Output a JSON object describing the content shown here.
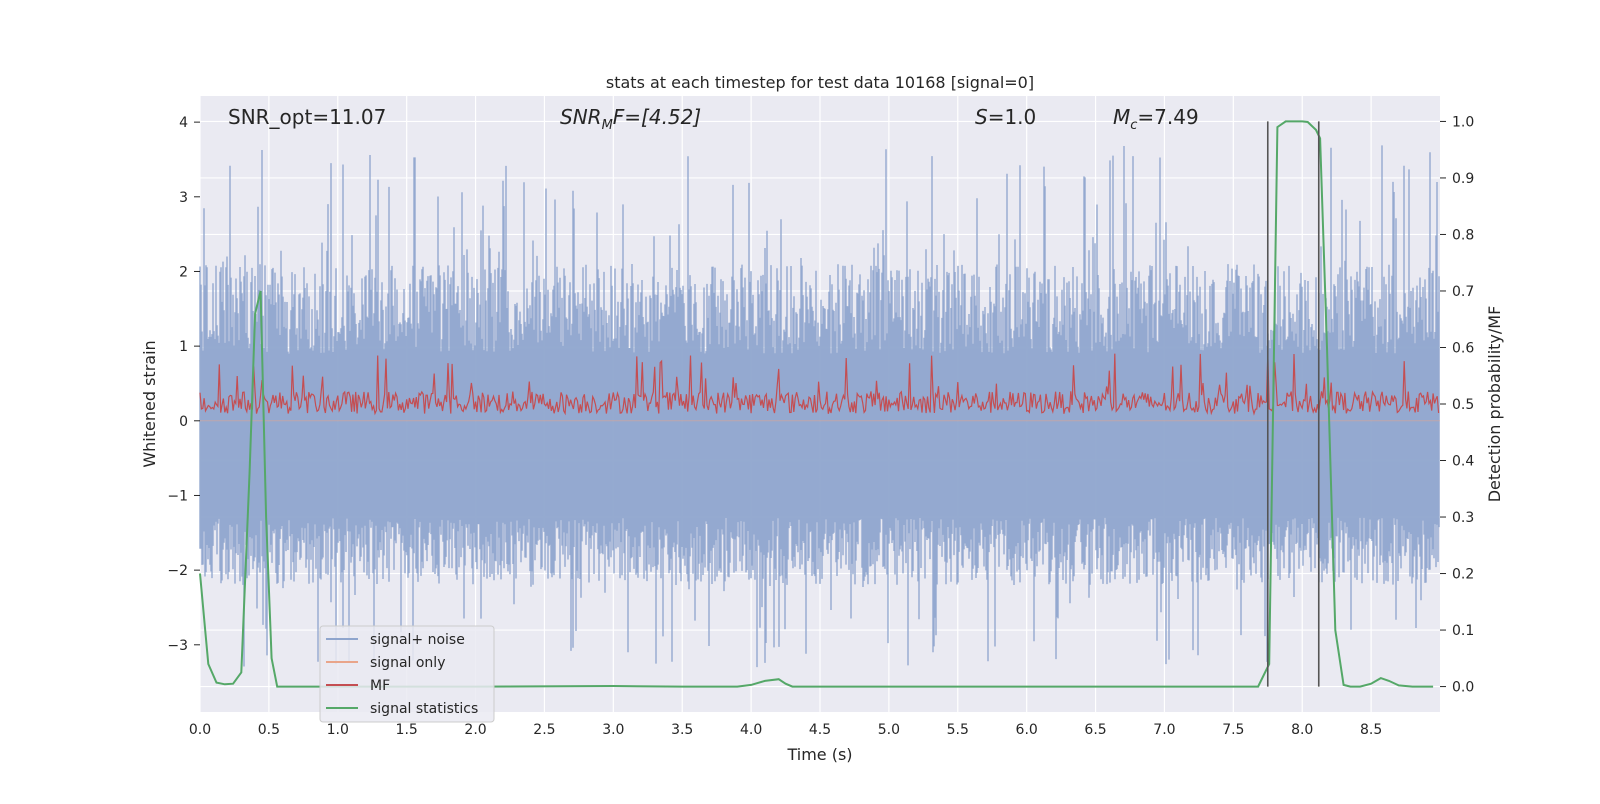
{
  "chart_data": {
    "type": "line",
    "title": "stats at each timestep for test data 10168 [signal=0]",
    "xlabel": "Time (s)",
    "ylabel_left": "Whitened strain",
    "ylabel_right": "Detection probability/MF",
    "xlim": [
      0.0,
      9.0
    ],
    "ylim_left": [
      -3.9,
      4.35
    ],
    "ylim_right": [
      -0.045,
      1.045
    ],
    "x_ticks": [
      0.0,
      0.5,
      1.0,
      1.5,
      2.0,
      2.5,
      3.0,
      3.5,
      4.0,
      4.5,
      5.0,
      5.5,
      6.0,
      6.5,
      7.0,
      7.5,
      8.0,
      8.5
    ],
    "x_tick_labels": [
      "0.0",
      "0.5",
      "1.0",
      "1.5",
      "2.0",
      "2.5",
      "3.0",
      "3.5",
      "4.0",
      "4.5",
      "5.0",
      "5.5",
      "6.0",
      "6.5",
      "7.0",
      "7.5",
      "8.0",
      "8.5"
    ],
    "y_left_ticks": [
      -3,
      -2,
      -1,
      0,
      1,
      2,
      3,
      4
    ],
    "y_left_tick_labels": [
      "−3",
      "−2",
      "−1",
      "0",
      "1",
      "2",
      "3",
      "4"
    ],
    "y_right_ticks": [
      0.0,
      0.1,
      0.2,
      0.3,
      0.4,
      0.5,
      0.6,
      0.7,
      0.8,
      0.9,
      1.0
    ],
    "y_right_tick_labels": [
      "0.0",
      "0.1",
      "0.2",
      "0.3",
      "0.4",
      "0.5",
      "0.6",
      "0.7",
      "0.8",
      "0.9",
      "1.0"
    ],
    "annotations": {
      "snr_opt": "SNR_opt=11.07",
      "snr_mf_name": "SNR",
      "snr_mf_sub": "M",
      "snr_mf_rest": "F=[4.52]",
      "s_name": "S",
      "s_rest": "=1.0",
      "mc_name": "M",
      "mc_sub": "c",
      "mc_rest": "=7.49"
    },
    "vlines": [
      7.75,
      8.12
    ],
    "series": [
      {
        "name": "signal+ noise",
        "color": "#8fa5cd",
        "axis": "left",
        "kind": "noise",
        "approx_center": 0.0,
        "approx_max": 3.9,
        "approx_min": -3.4
      },
      {
        "name": "signal only",
        "color": "#e9a58a",
        "axis": "left",
        "kind": "flat"
      },
      {
        "name": "MF",
        "color": "#c44e52",
        "axis": "left",
        "kind": "noise",
        "approx_center": 0.2,
        "approx_max": 1.0,
        "approx_min": 0.0
      },
      {
        "name": "signal statistics",
        "color": "#55a868",
        "axis": "right",
        "x": [
          0.0,
          0.06,
          0.12,
          0.18,
          0.24,
          0.3,
          0.36,
          0.4,
          0.44,
          0.48,
          0.52,
          0.56,
          0.6,
          1.0,
          2.0,
          3.0,
          3.5,
          3.9,
          4.0,
          4.1,
          4.2,
          4.25,
          4.3,
          4.5,
          5.0,
          6.0,
          7.0,
          7.5,
          7.68,
          7.76,
          7.82,
          7.88,
          8.0,
          8.04,
          8.1,
          8.13,
          8.18,
          8.24,
          8.3,
          8.35,
          8.42,
          8.5,
          8.57,
          8.63,
          8.7,
          8.8,
          8.95
        ],
        "values": [
          0.2,
          0.04,
          0.007,
          0.004,
          0.005,
          0.025,
          0.38,
          0.66,
          0.7,
          0.3,
          0.05,
          0.0,
          0.0,
          0.0,
          0.0,
          0.001,
          0.0,
          0.0,
          0.003,
          0.01,
          0.013,
          0.005,
          0.0,
          0.0,
          0.0,
          0.0,
          0.0,
          0.0,
          0.0,
          0.04,
          0.99,
          1.0,
          1.0,
          0.999,
          0.985,
          0.97,
          0.6,
          0.1,
          0.003,
          0.0,
          0.0,
          0.005,
          0.015,
          0.01,
          0.002,
          0.0,
          0.0
        ]
      }
    ],
    "legend": [
      "signal+ noise",
      "signal only",
      "MF",
      "signal statistics"
    ],
    "legend_location": "lower-left"
  }
}
